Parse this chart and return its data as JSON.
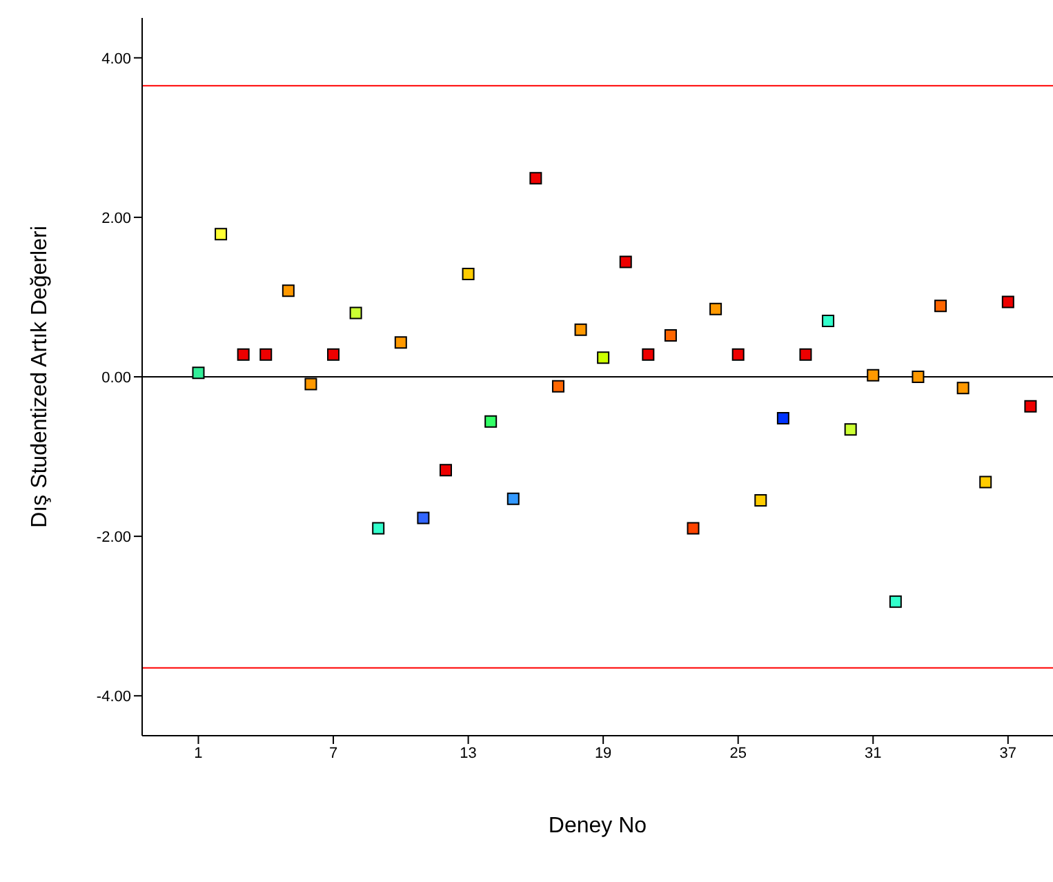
{
  "chart_data": {
    "type": "scatter",
    "xlabel": "Deney No",
    "ylabel": "Dış Studentized Artık Değerleri",
    "x": [
      1,
      2,
      3,
      4,
      5,
      6,
      7,
      8,
      9,
      10,
      11,
      12,
      13,
      14,
      15,
      16,
      17,
      18,
      19,
      20,
      21,
      22,
      23,
      24,
      25,
      26,
      27,
      28,
      29,
      30,
      31,
      32,
      33,
      34,
      35,
      36,
      37,
      38
    ],
    "values": [
      0.05,
      1.79,
      0.28,
      0.28,
      1.08,
      -0.09,
      0.28,
      0.8,
      -1.9,
      0.43,
      -1.77,
      -1.17,
      1.29,
      -0.56,
      -1.53,
      2.49,
      -0.12,
      0.59,
      0.24,
      1.44,
      0.28,
      0.52,
      -1.9,
      0.85,
      0.28,
      -1.55,
      -0.52,
      0.28,
      0.7,
      -0.66,
      0.02,
      -2.82,
      0,
      0.89,
      -0.14,
      -1.32,
      0.94,
      -0.37
    ],
    "colors": [
      "#33ee99",
      "#ffff33",
      "#ee0000",
      "#ee0000",
      "#ff9900",
      "#ff9900",
      "#ee0000",
      "#ccff33",
      "#33ffcc",
      "#ff9900",
      "#3366ff",
      "#ee0000",
      "#ffcc00",
      "#33ff66",
      "#3399ff",
      "#ee0000",
      "#ff6600",
      "#ff9900",
      "#ccff00",
      "#ee0000",
      "#ee0000",
      "#ff6600",
      "#ff4400",
      "#ff9900",
      "#ee0000",
      "#ffcc00",
      "#0033ff",
      "#ee0000",
      "#33ffcc",
      "#ccff33",
      "#ff9900",
      "#33ffcc",
      "#ff9900",
      "#ff6600",
      "#ff9900",
      "#ffcc00",
      "#ee0000",
      "#ee0000"
    ],
    "marker": "square",
    "xlim": [
      -1.5,
      39
    ],
    "xticks": [
      1,
      7,
      13,
      19,
      25,
      31,
      37
    ],
    "ylim": [
      -4.5,
      4.5
    ],
    "yticks": [
      {
        "value": 4,
        "label": "4.00"
      },
      {
        "value": 2,
        "label": "2.00"
      },
      {
        "value": 0,
        "label": "0.00"
      },
      {
        "value": -2,
        "label": "-2.00"
      },
      {
        "value": -4,
        "label": "-4.00"
      }
    ],
    "ref_lines": [
      {
        "axis": "y",
        "value": 3.65,
        "color": "#ff0000"
      },
      {
        "axis": "y",
        "value": -3.65,
        "color": "#ff0000"
      },
      {
        "axis": "y",
        "value": 0,
        "color": "#000000"
      }
    ],
    "grid": false,
    "legend": false
  }
}
